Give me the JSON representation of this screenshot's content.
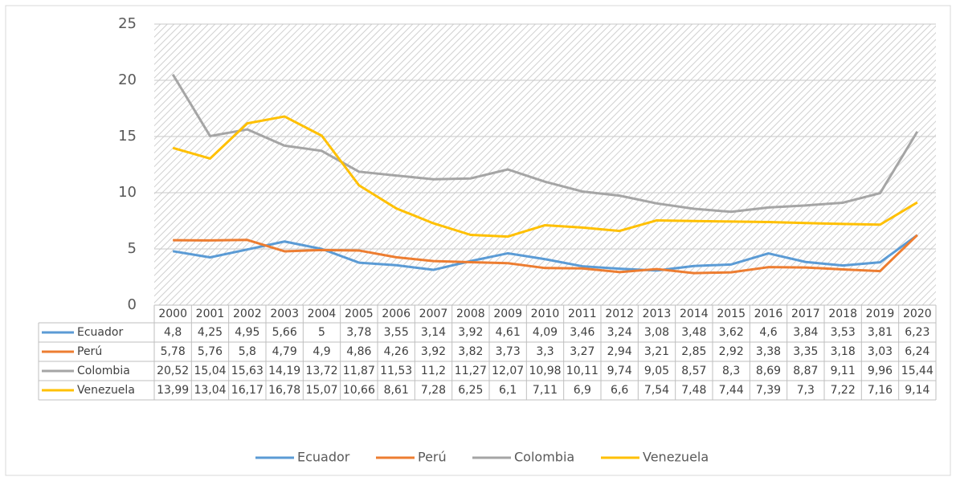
{
  "chart_data": {
    "type": "line",
    "categories": [
      "2000",
      "2001",
      "2002",
      "2003",
      "2004",
      "2005",
      "2006",
      "2007",
      "2008",
      "2009",
      "2010",
      "2011",
      "2012",
      "2013",
      "2014",
      "2015",
      "2016",
      "2017",
      "2018",
      "2019",
      "2020"
    ],
    "ylim": [
      0,
      25
    ],
    "yticks": [
      0,
      5,
      10,
      15,
      20,
      25
    ],
    "grid": true,
    "legend": "bottom",
    "series": [
      {
        "name": "Ecuador",
        "color": "#5b9bd5",
        "values": [
          4.8,
          4.25,
          4.95,
          5.66,
          5,
          3.78,
          3.55,
          3.14,
          3.92,
          4.61,
          4.09,
          3.46,
          3.24,
          3.08,
          3.48,
          3.62,
          4.6,
          3.84,
          3.53,
          3.81,
          6.23
        ],
        "value_labels": [
          "4,8",
          "4,25",
          "4,95",
          "5,66",
          "5",
          "3,78",
          "3,55",
          "3,14",
          "3,92",
          "4,61",
          "4,09",
          "3,46",
          "3,24",
          "3,08",
          "3,48",
          "3,62",
          "4,6",
          "3,84",
          "3,53",
          "3,81",
          "6,23"
        ]
      },
      {
        "name": "Perú",
        "color": "#ed7d31",
        "values": [
          5.78,
          5.76,
          5.8,
          4.79,
          4.9,
          4.86,
          4.26,
          3.92,
          3.82,
          3.73,
          3.3,
          3.27,
          2.94,
          3.21,
          2.85,
          2.92,
          3.38,
          3.35,
          3.18,
          3.03,
          6.24
        ],
        "value_labels": [
          "5,78",
          "5,76",
          "5,8",
          "4,79",
          "4,9",
          "4,86",
          "4,26",
          "3,92",
          "3,82",
          "3,73",
          "3,3",
          "3,27",
          "2,94",
          "3,21",
          "2,85",
          "2,92",
          "3,38",
          "3,35",
          "3,18",
          "3,03",
          "6,24"
        ]
      },
      {
        "name": "Colombia",
        "color": "#a5a5a5",
        "values": [
          20.52,
          15.04,
          15.63,
          14.19,
          13.72,
          11.87,
          11.53,
          11.2,
          11.27,
          12.07,
          10.98,
          10.11,
          9.74,
          9.05,
          8.57,
          8.3,
          8.69,
          8.87,
          9.11,
          9.96,
          15.44
        ],
        "value_labels": [
          "20,52",
          "15,04",
          "15,63",
          "14,19",
          "13,72",
          "11,87",
          "11,53",
          "11,2",
          "11,27",
          "12,07",
          "10,98",
          "10,11",
          "9,74",
          "9,05",
          "8,57",
          "8,3",
          "8,69",
          "8,87",
          "9,11",
          "9,96",
          "15,44"
        ]
      },
      {
        "name": "Venezuela",
        "color": "#ffc000",
        "values": [
          13.99,
          13.04,
          16.17,
          16.78,
          15.07,
          10.66,
          8.61,
          7.28,
          6.25,
          6.1,
          7.11,
          6.9,
          6.6,
          7.54,
          7.48,
          7.44,
          7.39,
          7.3,
          7.22,
          7.16,
          9.14
        ],
        "value_labels": [
          "13,99",
          "13,04",
          "16,17",
          "16,78",
          "15,07",
          "10,66",
          "8,61",
          "7,28",
          "6,25",
          "6,1",
          "7,11",
          "6,9",
          "6,6",
          "7,54",
          "7,48",
          "7,44",
          "7,39",
          "7,3",
          "7,22",
          "7,16",
          "9,14"
        ]
      }
    ]
  }
}
